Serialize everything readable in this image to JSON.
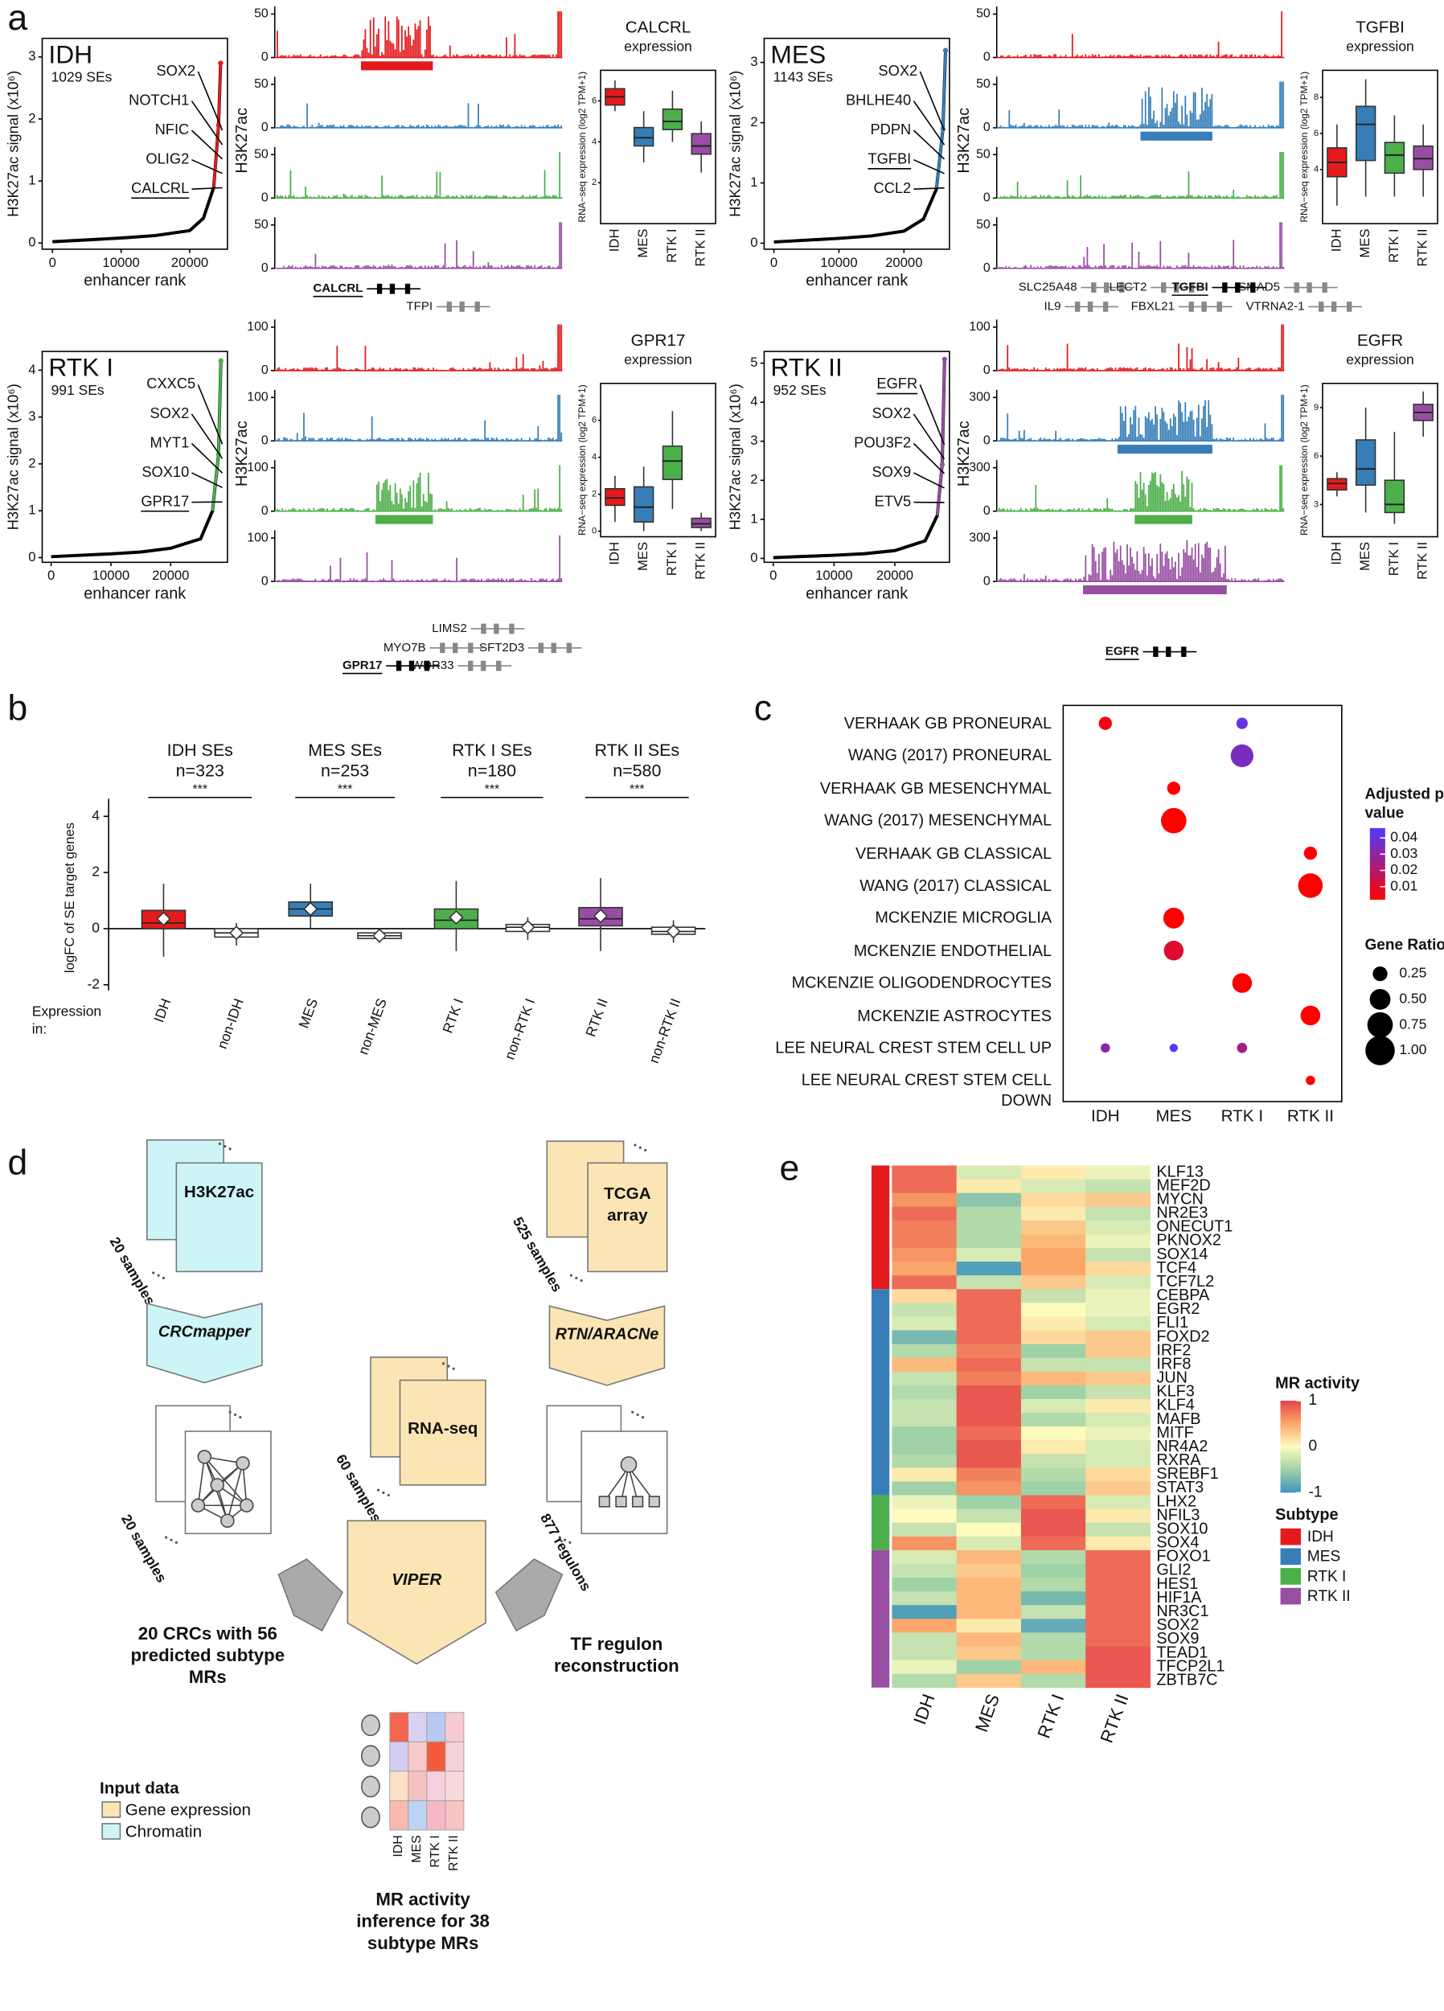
{
  "panel_labels": [
    "a",
    "b",
    "c",
    "d",
    "e"
  ],
  "panel_a": {
    "curve_ylabel": "H3K27ac signal (x10⁶)",
    "curve_xlabel": "enhancer rank",
    "track_label": "H3K27ac",
    "box_subtitle": "expression",
    "box_ylabel": "RNA−seq expression (log2 TPM+1)",
    "box_categories": [
      "IDH",
      "MES",
      "RTK I",
      "RTK II"
    ],
    "colors": [
      "#e41a1c",
      "#377eb8",
      "#4daf4a",
      "#984ea3"
    ],
    "panels": [
      {
        "subtype": "IDH",
        "se_count": "1029 SEs",
        "genes": [
          "SOX2",
          "NOTCH1",
          "NFIC",
          "OLIG2",
          "CALCRL"
        ],
        "underlined_gene": 4,
        "x": [
          0,
          5000,
          10000,
          15000,
          20000,
          22000,
          23500,
          24200,
          24500
        ],
        "y": [
          0.02,
          0.05,
          0.08,
          0.12,
          0.2,
          0.4,
          0.9,
          1.9,
          2.9
        ],
        "xlim": [
          -1500,
          25500
        ],
        "ylim": [
          -0.1,
          3.3
        ],
        "xticks": [
          0,
          10000,
          20000
        ],
        "yticks": [
          0,
          1,
          2,
          3
        ],
        "track_yticks": [
          [
            0,
            50
          ],
          [
            0,
            50
          ],
          [
            0,
            50
          ],
          [
            0,
            50
          ]
        ],
        "browser_genes": [
          "CALCRL",
          "TFPI"
        ],
        "box_title": "CALCRL",
        "box_ylim": [
          0,
          7.5
        ],
        "box_yticks": [
          2,
          4,
          6
        ],
        "boxes": [
          [
            5.5,
            5.8,
            6.2,
            6.6,
            7.0
          ],
          [
            3.0,
            3.8,
            4.2,
            4.7,
            5.5
          ],
          [
            4.0,
            4.6,
            5.0,
            5.6,
            6.5
          ],
          [
            2.5,
            3.4,
            3.8,
            4.4,
            5.0
          ]
        ]
      },
      {
        "subtype": "MES",
        "se_count": "1143 SEs",
        "genes": [
          "SOX2",
          "BHLHE40",
          "PDPN",
          "TGFBI",
          "CCL2"
        ],
        "underlined_gene": 3,
        "x": [
          0,
          5000,
          10000,
          15000,
          20000,
          23000,
          25000,
          26000,
          26400
        ],
        "y": [
          0.02,
          0.05,
          0.08,
          0.12,
          0.2,
          0.4,
          0.9,
          1.9,
          3.2
        ],
        "xlim": [
          -1500,
          27000
        ],
        "ylim": [
          -0.1,
          3.4
        ],
        "xticks": [
          0,
          10000,
          20000
        ],
        "yticks": [
          0,
          1,
          2,
          3
        ],
        "track_yticks": [
          [
            0,
            50
          ],
          [
            0,
            50
          ],
          [
            0,
            50
          ],
          [
            0,
            50
          ]
        ],
        "browser_genes": [
          "SLC25A48",
          "LECT2",
          "TGFBI",
          "SMAD5",
          "IL9",
          "FBXL21",
          "VTRNA2-1"
        ],
        "box_title": "TGFBI",
        "box_ylim": [
          1,
          9.5
        ],
        "box_yticks": [
          4,
          6,
          8
        ],
        "boxes": [
          [
            2.0,
            3.6,
            4.4,
            5.2,
            6.5
          ],
          [
            2.5,
            4.5,
            6.5,
            7.5,
            9.0
          ],
          [
            2.5,
            3.8,
            4.8,
            5.5,
            7.0
          ],
          [
            2.5,
            4.0,
            4.6,
            5.3,
            6.5
          ]
        ]
      },
      {
        "subtype": "RTK I",
        "se_count": "991 SEs",
        "genes": [
          "CXXC5",
          "SOX2",
          "MYT1",
          "SOX10",
          "GPR17"
        ],
        "underlined_gene": 4,
        "x": [
          0,
          5000,
          10000,
          15000,
          20000,
          25000,
          27000,
          28000,
          28400
        ],
        "y": [
          0.02,
          0.05,
          0.08,
          0.12,
          0.2,
          0.4,
          1.0,
          2.2,
          4.2
        ],
        "xlim": [
          -1500,
          29500
        ],
        "ylim": [
          -0.1,
          4.4
        ],
        "xticks": [
          0,
          10000,
          20000
        ],
        "yticks": [
          0,
          1,
          2,
          3,
          4
        ],
        "track_yticks": [
          [
            0,
            100
          ],
          [
            0,
            100
          ],
          [
            0,
            100
          ],
          [
            0,
            100
          ]
        ],
        "browser_genes": [
          "LIMS2",
          "MYO7B",
          "SFT2D3",
          "GPR17",
          "WDR33"
        ],
        "box_title": "GPR17",
        "box_ylim": [
          -0.3,
          8
        ],
        "box_yticks": [
          0,
          2,
          4,
          6
        ],
        "boxes": [
          [
            0.5,
            1.4,
            1.8,
            2.3,
            3.0
          ],
          [
            0,
            0.5,
            1.3,
            2.4,
            3.5
          ],
          [
            1.2,
            2.8,
            3.8,
            4.6,
            6.5
          ],
          [
            0,
            0.2,
            0.4,
            0.7,
            1.0
          ]
        ]
      },
      {
        "subtype": "RTK II",
        "se_count": "952 SEs",
        "genes": [
          "EGFR",
          "SOX2",
          "POU3F2",
          "SOX9",
          "ETV5"
        ],
        "underlined_gene": 0,
        "x": [
          0,
          5000,
          10000,
          15000,
          20000,
          25000,
          27000,
          27800,
          28200
        ],
        "y": [
          0.02,
          0.05,
          0.08,
          0.12,
          0.2,
          0.45,
          1.1,
          2.4,
          5.1
        ],
        "xlim": [
          -1500,
          29000
        ],
        "ylim": [
          -0.1,
          5.3
        ],
        "xticks": [
          0,
          10000,
          20000
        ],
        "yticks": [
          0,
          1,
          2,
          3,
          4,
          5
        ],
        "track_yticks": [
          [
            0,
            100
          ],
          [
            0,
            300
          ],
          [
            0,
            300
          ],
          [
            0,
            300
          ]
        ],
        "browser_genes": [
          "EGFR"
        ],
        "box_title": "EGFR",
        "box_ylim": [
          1,
          10.5
        ],
        "box_yticks": [
          3,
          6,
          9
        ],
        "boxes": [
          [
            3.5,
            3.9,
            4.3,
            4.6,
            5.0
          ],
          [
            2.5,
            4.2,
            5.2,
            7.0,
            9.0
          ],
          [
            1.8,
            2.5,
            3.0,
            4.5,
            7.5
          ],
          [
            7.2,
            8.2,
            8.7,
            9.2,
            10.0
          ]
        ]
      }
    ]
  },
  "panel_b": {
    "ylabel": "logFC of SE target genes",
    "ylim": [
      -2.2,
      4.4
    ],
    "yticks": [
      -2,
      0,
      2,
      4
    ],
    "expression_label": [
      "Expression",
      "in:"
    ],
    "colors": [
      "#e41a1c",
      "#377eb8",
      "#4daf4a",
      "#984ea3"
    ],
    "groups": [
      {
        "title": "IDH SEs",
        "n": "n=323",
        "significance": "***",
        "categories": [
          "IDH",
          "non-IDH"
        ],
        "boxes": [
          [
            -1.0,
            0,
            0.2,
            0.65,
            1.6
          ],
          [
            -0.6,
            -0.3,
            -0.15,
            0,
            0.2
          ]
        ],
        "means": [
          0.35,
          -0.15
        ]
      },
      {
        "title": "MES SEs",
        "n": "n=253",
        "significance": "***",
        "categories": [
          "MES",
          "non-MES"
        ],
        "boxes": [
          [
            0,
            0.45,
            0.7,
            0.95,
            1.6
          ],
          [
            -0.5,
            -0.35,
            -0.25,
            -0.15,
            0
          ]
        ],
        "means": [
          0.7,
          -0.25
        ]
      },
      {
        "title": "RTK I SEs",
        "n": "n=180",
        "significance": "***",
        "categories": [
          "RTK I",
          "non-RTK I"
        ],
        "boxes": [
          [
            -0.8,
            0,
            0.3,
            0.7,
            1.7
          ],
          [
            -0.4,
            -0.1,
            0.05,
            0.15,
            0.4
          ]
        ],
        "means": [
          0.4,
          0.05
        ]
      },
      {
        "title": "RTK II SEs",
        "n": "n=580",
        "significance": "***",
        "categories": [
          "RTK II",
          "non-RTK II"
        ],
        "boxes": [
          [
            -0.8,
            0.1,
            0.35,
            0.75,
            1.8
          ],
          [
            -0.5,
            -0.2,
            -0.1,
            0.05,
            0.3
          ]
        ],
        "means": [
          0.45,
          -0.1
        ]
      }
    ]
  },
  "panel_c": {
    "terms": [
      "VERHAAK GB PRONEURAL",
      "WANG (2017) PRONEURAL",
      "VERHAAK GB MESENCHYMAL",
      "WANG (2017) MESENCHYMAL",
      "VERHAAK GB CLASSICAL",
      "WANG (2017) CLASSICAL",
      "MCKENZIE MICROGLIA",
      "MCKENZIE ENDOTHELIAL",
      "MCKENZIE OLIGODENDROCYTES",
      "MCKENZIE ASTROCYTES",
      "LEE NEURAL CREST STEM CELL UP",
      "LEE NEURAL CREST STEM CELL DOWN"
    ],
    "categories": [
      "IDH",
      "MES",
      "RTK I",
      "RTK II"
    ],
    "p_values": [
      [
        0.005,
        null,
        0.04,
        null
      ],
      [
        null,
        null,
        0.035,
        null
      ],
      [
        null,
        0.002,
        null,
        null
      ],
      [
        null,
        0.002,
        null,
        null
      ],
      [
        null,
        null,
        null,
        0.003
      ],
      [
        null,
        null,
        null,
        0.002
      ],
      [
        null,
        0.002,
        null,
        null
      ],
      [
        null,
        0.01,
        null,
        null
      ],
      [
        null,
        null,
        0.003,
        null
      ],
      [
        null,
        null,
        null,
        0.002
      ],
      [
        0.03,
        0.045,
        0.025,
        null
      ],
      [
        null,
        null,
        null,
        0.002
      ]
    ],
    "gene_ratios": [
      [
        0.2,
        null,
        0.15,
        null
      ],
      [
        null,
        null,
        0.6,
        null
      ],
      [
        null,
        0.2,
        null,
        null
      ],
      [
        null,
        0.75,
        null,
        null
      ],
      [
        null,
        null,
        null,
        0.2
      ],
      [
        null,
        null,
        null,
        0.7
      ],
      [
        null,
        0.5,
        null,
        null
      ],
      [
        null,
        0.45,
        null,
        null
      ],
      [
        null,
        null,
        0.45,
        null
      ],
      [
        null,
        null,
        null,
        0.45
      ],
      [
        0.1,
        0.08,
        0.12,
        null
      ],
      [
        null,
        null,
        null,
        0.1
      ]
    ],
    "p_legend_title": "Adjusted p-value",
    "p_ticks": [
      0.04,
      0.03,
      0.02,
      0.01
    ],
    "p_lim": [
      0.002,
      0.046
    ],
    "p_colors": [
      "#ff0000",
      "#4b3cff"
    ],
    "ratio_legend_title": "Gene Ratio",
    "ratio_ticks": [
      0.25,
      {
        "value": 0.5,
        "label": "0.50"
      },
      0.75,
      {
        "value": 1,
        "label": "1.00"
      }
    ]
  },
  "panel_d": {
    "h3k27ac": {
      "samples": "20 samples",
      "label": "H3K27ac",
      "tool": "CRCmapper",
      "output_samples": "20 samples",
      "output": "20 CRCs with 56 predicted subtype MRs"
    },
    "rnaseq": {
      "samples": "60 samples",
      "label": "RNA-seq",
      "tool": "VIPER"
    },
    "tcga": {
      "samples": "525 samples",
      "label": "TCGA array",
      "tool": "RTN/ARACNe",
      "output_samples": "877 regulons",
      "output": "TF regulon reconstruction"
    },
    "heatmap_labels": [
      "IDH",
      "MES",
      "RTK I",
      "RTK II"
    ],
    "result": "MR activity inference for 38 subtype MRs",
    "legend": {
      "title": "Input data",
      "items": [
        "Gene expression",
        "Chromatin"
      ],
      "colors": [
        "#fbe5b5",
        "#cdf5f8"
      ]
    }
  },
  "panel_e": {
    "genes": [
      "KLF13",
      "MEF2D",
      "MYCN",
      "NR2E3",
      "ONECUT1",
      "PKNOX2",
      "SOX14",
      "TCF4",
      "TCF7L2",
      "CEBPA",
      "EGR2",
      "FLI1",
      "FOXD2",
      "IRF2",
      "IRF8",
      "JUN",
      "KLF3",
      "KLF4",
      "MAFB",
      "MITF",
      "NR4A2",
      "RXRA",
      "SREBF1",
      "STAT3",
      "LHX2",
      "NFIL3",
      "SOX10",
      "SOX4",
      "FOXO1",
      "GLI2",
      "HES1",
      "HIF1A",
      "NR3C1",
      "SOX2",
      "SOX9",
      "TEAD1",
      "TFCP2L1",
      "ZBTB7C"
    ],
    "categories": [
      "IDH",
      "MES",
      "RTK I",
      "RTK II"
    ],
    "values": [
      [
        0.8,
        -0.2,
        0.1,
        -0.1
      ],
      [
        0.8,
        0.1,
        -0.2,
        -0.3
      ],
      [
        0.6,
        -0.6,
        0.2,
        0.3
      ],
      [
        0.8,
        -0.4,
        0.1,
        -0.3
      ],
      [
        0.7,
        -0.4,
        0.3,
        -0.2
      ],
      [
        0.7,
        -0.4,
        0.4,
        -0.1
      ],
      [
        0.6,
        -0.2,
        0.5,
        -0.3
      ],
      [
        0.5,
        -0.9,
        0.5,
        0.2
      ],
      [
        0.8,
        -0.3,
        0.3,
        -0.2
      ],
      [
        0.2,
        0.8,
        -0.3,
        -0.1
      ],
      [
        -0.3,
        0.8,
        0,
        -0.1
      ],
      [
        -0.2,
        0.8,
        0.1,
        -0.2
      ],
      [
        -0.7,
        0.8,
        0.2,
        0.3
      ],
      [
        -0.4,
        0.7,
        -0.5,
        0.3
      ],
      [
        0.4,
        0.8,
        -0.3,
        -0.3
      ],
      [
        -0.3,
        0.7,
        0.4,
        0.3
      ],
      [
        -0.4,
        0.9,
        -0.5,
        -0.3
      ],
      [
        -0.3,
        0.9,
        -0.2,
        0.1
      ],
      [
        -0.3,
        0.9,
        -0.4,
        -0.2
      ],
      [
        -0.5,
        0.8,
        0,
        -0.1
      ],
      [
        -0.5,
        0.9,
        0.1,
        -0.2
      ],
      [
        -0.4,
        0.9,
        -0.3,
        -0.2
      ],
      [
        0.1,
        0.7,
        -0.4,
        0.2
      ],
      [
        -0.5,
        0.6,
        -0.5,
        0.3
      ],
      [
        -0.1,
        -0.5,
        0.8,
        -0.2
      ],
      [
        0,
        -0.3,
        0.9,
        0.1
      ],
      [
        -0.3,
        0,
        0.9,
        -0.3
      ],
      [
        0.6,
        -0.2,
        0.8,
        0.1
      ],
      [
        -0.2,
        0.4,
        -0.4,
        0.8
      ],
      [
        -0.3,
        0.3,
        -0.5,
        0.8
      ],
      [
        -0.5,
        0.4,
        -0.4,
        0.8
      ],
      [
        -0.3,
        0.4,
        -0.7,
        0.8
      ],
      [
        -0.9,
        0.4,
        -0.3,
        0.8
      ],
      [
        0.5,
        0.1,
        -0.8,
        0.8
      ],
      [
        -0.3,
        0.4,
        -0.4,
        0.8
      ],
      [
        -0.3,
        0.3,
        -0.4,
        0.9
      ],
      [
        -0.1,
        -0.5,
        0.4,
        0.9
      ],
      [
        -0.4,
        0.3,
        -0.4,
        0.9
      ]
    ],
    "colorscale": [
      {
        "value": -1,
        "color": "#3e93c0"
      },
      {
        "value": -0.5,
        "color": "#9fd2a6"
      },
      {
        "value": 0,
        "color": "#fdfbbe"
      },
      {
        "value": 0.5,
        "color": "#fca86a"
      },
      {
        "value": 1,
        "color": "#e4444a"
      }
    ],
    "legend_title": "MR activity",
    "legend_ticks": [
      1,
      0,
      -1
    ],
    "subtype_title": "Subtype",
    "subtypes": [
      "IDH",
      "MES",
      "RTK I",
      "RTK II"
    ],
    "subtype_colors": [
      "#e41a1c",
      "#377eb8",
      "#4daf4a",
      "#984ea3"
    ],
    "subtype_sizes": [
      9,
      15,
      4,
      10
    ]
  }
}
